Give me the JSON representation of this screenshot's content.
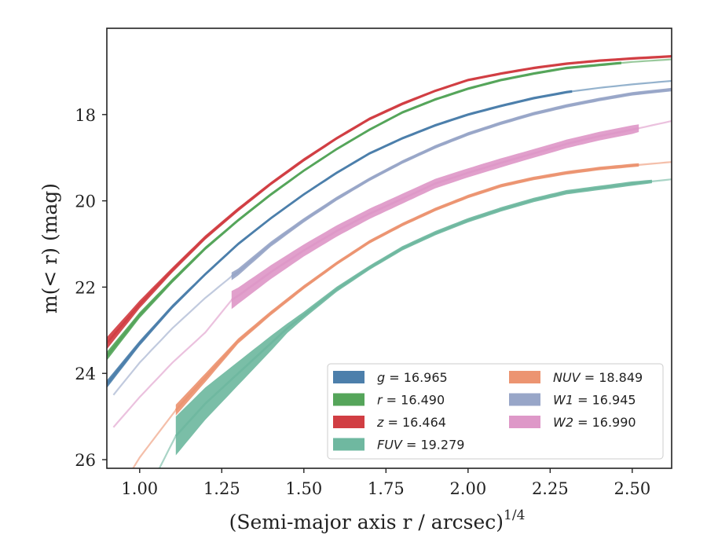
{
  "chart_data": {
    "type": "line",
    "xlabel": "(Semi-major axis r / arcsec)",
    "xlabel_sup": "1/4",
    "ylabel": "m(< r) (mag)",
    "xlim": [
      0.9,
      2.62
    ],
    "ylim": [
      26.2,
      16.0
    ],
    "y_inverted": true,
    "grid": false,
    "legend_position": "lower-right",
    "x_ticks": [
      {
        "value": 1.0,
        "label": "1.00"
      },
      {
        "value": 1.25,
        "label": "1.25"
      },
      {
        "value": 1.5,
        "label": "1.50"
      },
      {
        "value": 1.75,
        "label": "1.75"
      },
      {
        "value": 2.0,
        "label": "2.00"
      },
      {
        "value": 2.25,
        "label": "2.25"
      },
      {
        "value": 2.5,
        "label": "2.50"
      }
    ],
    "y_ticks": [
      {
        "value": 18,
        "label": "18"
      },
      {
        "value": 20,
        "label": "20"
      },
      {
        "value": 22,
        "label": "22"
      },
      {
        "value": 24,
        "label": "24"
      },
      {
        "value": 26,
        "label": "26"
      }
    ],
    "legend": [
      {
        "var": "g",
        "value": "= 16.965",
        "color": "#4c7fab"
      },
      {
        "var": "r",
        "value": "= 16.490",
        "color": "#55a55a"
      },
      {
        "var": "z",
        "value": "= 16.464",
        "color": "#d13e43"
      },
      {
        "var": "FUV",
        "value": "= 19.279",
        "color": "#6fb8a0"
      },
      {
        "var": "NUV",
        "value": "= 18.849",
        "color": "#ec9471"
      },
      {
        "var": "W1",
        "value": "= 16.945",
        "color": "#98a6c8"
      },
      {
        "var": "W2",
        "value": "= 16.990",
        "color": "#de98c8"
      }
    ],
    "series": [
      {
        "key": "z",
        "color": "#d13e43",
        "x": [
          0.9,
          1.0,
          1.1,
          1.2,
          1.3,
          1.4,
          1.5,
          1.6,
          1.7,
          1.8,
          1.9,
          2.0,
          2.1,
          2.2,
          2.3,
          2.4,
          2.5,
          2.62
        ],
        "y": [
          23.3,
          22.4,
          21.6,
          20.85,
          20.2,
          19.6,
          19.05,
          18.55,
          18.1,
          17.75,
          17.45,
          17.2,
          17.05,
          16.92,
          16.82,
          16.75,
          16.7,
          16.65
        ],
        "width": [
          0.28,
          0.18,
          0.12,
          0.1,
          0.09,
          0.08,
          0.08,
          0.07,
          0.07,
          0.07,
          0.06,
          0.06,
          0.06,
          0.06,
          0.06,
          0.06,
          0.06,
          0.06
        ],
        "solid_from": 0.9,
        "solid_to": 2.62
      },
      {
        "key": "r",
        "color": "#55a55a",
        "x": [
          0.9,
          1.0,
          1.1,
          1.2,
          1.3,
          1.4,
          1.5,
          1.6,
          1.7,
          1.8,
          1.9,
          2.0,
          2.1,
          2.2,
          2.3,
          2.4,
          2.5,
          2.62
        ],
        "y": [
          23.6,
          22.65,
          21.85,
          21.1,
          20.45,
          19.85,
          19.3,
          18.8,
          18.35,
          17.95,
          17.65,
          17.4,
          17.2,
          17.05,
          16.92,
          16.85,
          16.78,
          16.72
        ],
        "width": [
          0.2,
          0.14,
          0.1,
          0.08,
          0.07,
          0.07,
          0.06,
          0.06,
          0.06,
          0.06,
          0.06,
          0.06,
          0.06,
          0.06,
          0.06,
          0.06,
          0.06,
          0.06
        ],
        "solid_from": 0.9,
        "solid_to": 2.47
      },
      {
        "key": "g",
        "color": "#4c7fab",
        "x": [
          0.9,
          1.0,
          1.1,
          1.2,
          1.3,
          1.4,
          1.5,
          1.6,
          1.7,
          1.8,
          1.9,
          2.0,
          2.1,
          2.2,
          2.3,
          2.4,
          2.5,
          2.62
        ],
        "y": [
          24.25,
          23.3,
          22.45,
          21.7,
          21.0,
          20.4,
          19.85,
          19.35,
          18.9,
          18.55,
          18.25,
          18.0,
          17.8,
          17.62,
          17.48,
          17.38,
          17.3,
          17.22
        ],
        "width": [
          0.18,
          0.12,
          0.09,
          0.07,
          0.07,
          0.06,
          0.06,
          0.06,
          0.06,
          0.06,
          0.06,
          0.06,
          0.06,
          0.06,
          0.06,
          0.06,
          0.06,
          0.06
        ],
        "solid_from": 0.9,
        "solid_to": 2.33
      },
      {
        "key": "W1",
        "color": "#98a6c8",
        "x": [
          0.92,
          1.0,
          1.1,
          1.2,
          1.28,
          1.3,
          1.4,
          1.5,
          1.6,
          1.7,
          1.8,
          1.9,
          2.0,
          2.1,
          2.2,
          2.3,
          2.4,
          2.5,
          2.62
        ],
        "y": [
          24.5,
          23.75,
          22.95,
          22.25,
          21.75,
          21.65,
          21.0,
          20.45,
          19.95,
          19.5,
          19.1,
          18.75,
          18.45,
          18.2,
          17.98,
          17.8,
          17.65,
          17.52,
          17.42
        ],
        "width": [
          0.06,
          0.06,
          0.06,
          0.06,
          0.18,
          0.16,
          0.12,
          0.1,
          0.09,
          0.08,
          0.08,
          0.08,
          0.08,
          0.08,
          0.08,
          0.08,
          0.08,
          0.08,
          0.08
        ],
        "solid_from": 1.28,
        "solid_to": 2.62
      },
      {
        "key": "W2",
        "color": "#de98c8",
        "x": [
          0.92,
          1.0,
          1.1,
          1.2,
          1.28,
          1.3,
          1.4,
          1.5,
          1.6,
          1.7,
          1.8,
          1.9,
          2.0,
          2.1,
          2.2,
          2.3,
          2.4,
          2.5,
          2.62
        ],
        "y": [
          25.25,
          24.55,
          23.75,
          23.05,
          22.3,
          22.2,
          21.65,
          21.15,
          20.7,
          20.3,
          19.95,
          19.6,
          19.35,
          19.12,
          18.9,
          18.68,
          18.5,
          18.35,
          18.15
        ],
        "width": [
          0.06,
          0.06,
          0.06,
          0.06,
          0.42,
          0.38,
          0.32,
          0.28,
          0.26,
          0.24,
          0.23,
          0.22,
          0.21,
          0.21,
          0.2,
          0.2,
          0.2,
          0.2,
          0.06
        ],
        "solid_from": 1.28,
        "solid_to": 2.53
      },
      {
        "key": "NUV",
        "color": "#ec9471",
        "x": [
          0.98,
          1.0,
          1.05,
          1.11,
          1.2,
          1.3,
          1.4,
          1.5,
          1.6,
          1.7,
          1.8,
          1.9,
          2.0,
          2.1,
          2.2,
          2.3,
          2.4,
          2.5,
          2.62
        ],
        "y": [
          26.2,
          25.95,
          25.45,
          24.85,
          24.1,
          23.25,
          22.6,
          22.0,
          21.45,
          20.95,
          20.55,
          20.2,
          19.9,
          19.65,
          19.48,
          19.35,
          19.25,
          19.18,
          19.1
        ],
        "width": [
          0.06,
          0.06,
          0.06,
          0.25,
          0.2,
          0.12,
          0.1,
          0.09,
          0.08,
          0.08,
          0.08,
          0.08,
          0.08,
          0.08,
          0.08,
          0.08,
          0.08,
          0.08,
          0.06
        ],
        "solid_from": 1.11,
        "solid_to": 2.52
      },
      {
        "key": "FUV",
        "color": "#6fb8a0",
        "x": [
          1.06,
          1.11,
          1.2,
          1.3,
          1.4,
          1.45,
          1.5,
          1.6,
          1.7,
          1.8,
          1.9,
          2.0,
          2.1,
          2.2,
          2.3,
          2.4,
          2.5,
          2.62
        ],
        "y": [
          26.2,
          25.45,
          24.7,
          24.0,
          23.3,
          22.95,
          22.65,
          22.05,
          21.55,
          21.1,
          20.75,
          20.45,
          20.2,
          19.98,
          19.8,
          19.7,
          19.6,
          19.5
        ],
        "width": [
          0.06,
          0.9,
          0.75,
          0.55,
          0.35,
          0.22,
          0.16,
          0.12,
          0.1,
          0.1,
          0.1,
          0.1,
          0.1,
          0.1,
          0.1,
          0.1,
          0.1,
          0.06
        ],
        "solid_from": 1.11,
        "solid_to": 2.57
      }
    ]
  }
}
